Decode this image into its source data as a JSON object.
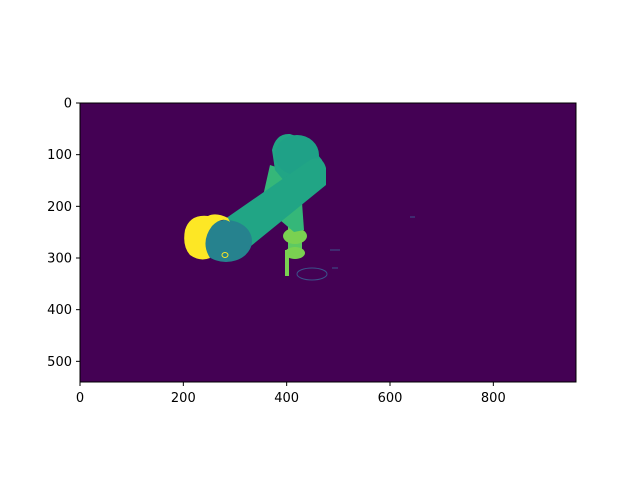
{
  "chart_data": {
    "type": "heatmap",
    "title": "",
    "xlabel": "",
    "ylabel": "",
    "xlim": [
      0,
      960
    ],
    "ylim": [
      540,
      0
    ],
    "y_inverted": true,
    "grid": false,
    "x_ticks": [
      0,
      200,
      400,
      600,
      800
    ],
    "y_ticks": [
      0,
      100,
      200,
      300,
      400,
      500
    ],
    "x_tick_labels": [
      "0",
      "200",
      "400",
      "600",
      "800"
    ],
    "y_tick_labels": [
      "0",
      "100",
      "200",
      "300",
      "400",
      "500"
    ],
    "colormap": "viridis",
    "colors": {
      "background": "#440154",
      "gripper": "#5ec962",
      "gripper_light": "#7ad151",
      "lower_arm": "#35b779",
      "upper_arm": "#21a585",
      "elbow_cap": "#1fa187",
      "shoulder_cap": "#26828e",
      "near_part": "#fde725",
      "outline": "#3b528b"
    },
    "content": "depth render of a robot arm on a uniform background"
  }
}
